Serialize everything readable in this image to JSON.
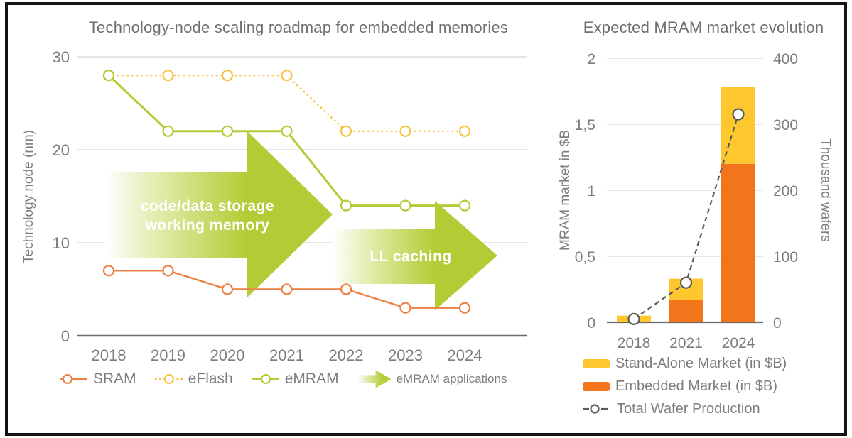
{
  "theme": {
    "background": "#ffffff",
    "frame": "#141414",
    "title": "#6f6f6f",
    "text": "#7d7d7d",
    "grid": "#dedede",
    "axis": "#6a6a6a",
    "arrow_text": "#ffffff"
  },
  "chart_data": [
    {
      "type": "line",
      "title": "Technology-node scaling roadmap for embedded memories",
      "ylabel": "Technology node (nm)",
      "ylim": [
        0,
        30
      ],
      "y_ticks": [
        0,
        10,
        20,
        30
      ],
      "grid": true,
      "categories": [
        "2018",
        "2019",
        "2020",
        "2021",
        "2022",
        "2023",
        "2024"
      ],
      "series": [
        {
          "name": "SRAM",
          "color": "#ED8043",
          "style": "solid",
          "values": [
            7,
            7,
            5,
            5,
            5,
            3,
            3
          ]
        },
        {
          "name": "eFlash",
          "color": "#F6C443",
          "style": "dotted",
          "values": [
            28,
            28,
            28,
            28,
            22,
            22,
            22
          ]
        },
        {
          "name": "eMRAM",
          "color": "#B4CB35",
          "style": "solid",
          "values": [
            28,
            22,
            22,
            22,
            14,
            14,
            14
          ]
        }
      ],
      "arrow_color": "#B4CB35",
      "arrows": [
        {
          "label": "code/data storage\nworking memory"
        },
        {
          "label": "LL caching"
        }
      ],
      "legend_note": "eMRAM applications",
      "legend_position": "bottom"
    },
    {
      "type": "bar",
      "title": "Expected MRAM market evolution",
      "stacked": true,
      "categories": [
        "2018",
        "2021",
        "2024"
      ],
      "left_axis": {
        "label": "MRAM market in $B",
        "lim": [
          0,
          2
        ],
        "tick_values": [
          0,
          0.5,
          1,
          1.5,
          2
        ],
        "ticks": [
          "0",
          "0,5",
          "1",
          "1,5",
          "2"
        ]
      },
      "right_axis": {
        "label": "Thousand wafers",
        "lim": [
          0,
          400
        ],
        "tick_values": [
          0,
          100,
          200,
          300,
          400
        ],
        "ticks": [
          "0",
          "100",
          "200",
          "300",
          "400"
        ]
      },
      "series": [
        {
          "name": "Stand-Alone Market (in $B)",
          "type": "bar",
          "axis": "left",
          "color": "#FDC72D",
          "values": [
            0.05,
            0.16,
            0.58
          ]
        },
        {
          "name": "Embedded Market (in $B)",
          "type": "bar",
          "axis": "left",
          "color": "#F2741B",
          "values": [
            0,
            0.17,
            1.2
          ]
        },
        {
          "name": "Total Wafer Production",
          "type": "line",
          "axis": "right",
          "color": "#5a5a5a",
          "style": "dashed",
          "values": [
            5,
            60,
            315
          ]
        }
      ],
      "legend_position": "bottom"
    }
  ]
}
